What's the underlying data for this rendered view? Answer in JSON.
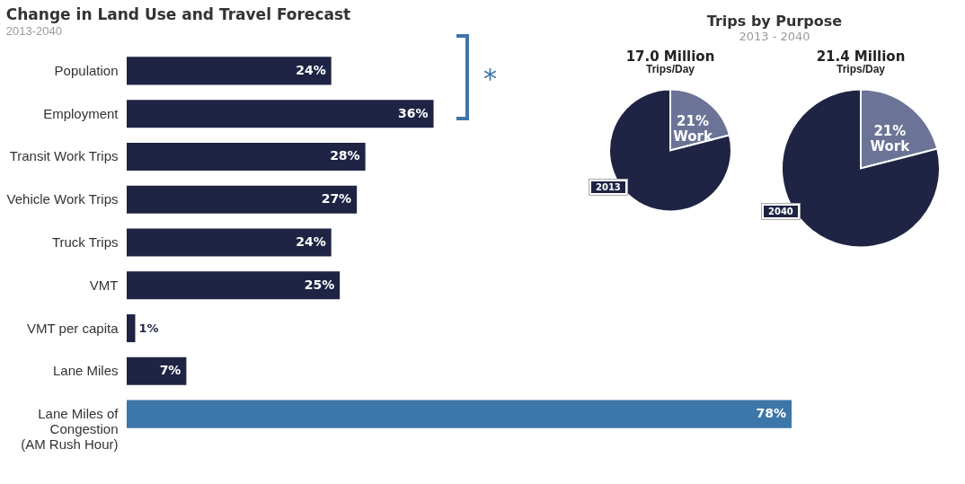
{
  "chart_data": [
    {
      "type": "bar",
      "orientation": "horizontal",
      "title": "Change in Land Use and Travel Forecast",
      "subtitle": "2013-2040",
      "categories": [
        "Population",
        "Employment",
        "Transit Work Trips",
        "Vehicle Work Trips",
        "Truck Trips",
        "VMT",
        "VMT per capita",
        "Lane Miles",
        "Lane Miles of\nCongestion\n(AM Rush Hour)"
      ],
      "values": [
        24,
        36,
        28,
        27,
        24,
        25,
        1,
        7,
        78
      ],
      "colors": [
        "#1f2444",
        "#1f2444",
        "#1f2444",
        "#1f2444",
        "#1f2444",
        "#1f2444",
        "#1f2444",
        "#1f2444",
        "#3d76a8"
      ],
      "value_labels": [
        "24%",
        "36%",
        "28%",
        "27%",
        "24%",
        "25%",
        "1%",
        "7%",
        "78%"
      ],
      "annotations": [
        "*"
      ]
    },
    {
      "type": "pie",
      "title": "17.0 Million",
      "subtitle": "Trips/Day",
      "categories": [
        "Work",
        null
      ],
      "values": [
        21,
        79
      ],
      "colors": [
        "#6b7397",
        "#1f2444"
      ],
      "value_labels": [
        "21%",
        null
      ],
      "annotations": [
        "Trips by Purpose",
        "2013 - 2040",
        "2013"
      ]
    },
    {
      "type": "pie",
      "title": "21.4 Million",
      "subtitle": "Trips/Day",
      "categories": [
        "Work",
        null
      ],
      "values": [
        21,
        79
      ],
      "colors": [
        "#6b7397",
        "#1f2444"
      ],
      "value_labels": [
        "21%",
        null
      ],
      "annotations": [
        "2040"
      ]
    }
  ]
}
